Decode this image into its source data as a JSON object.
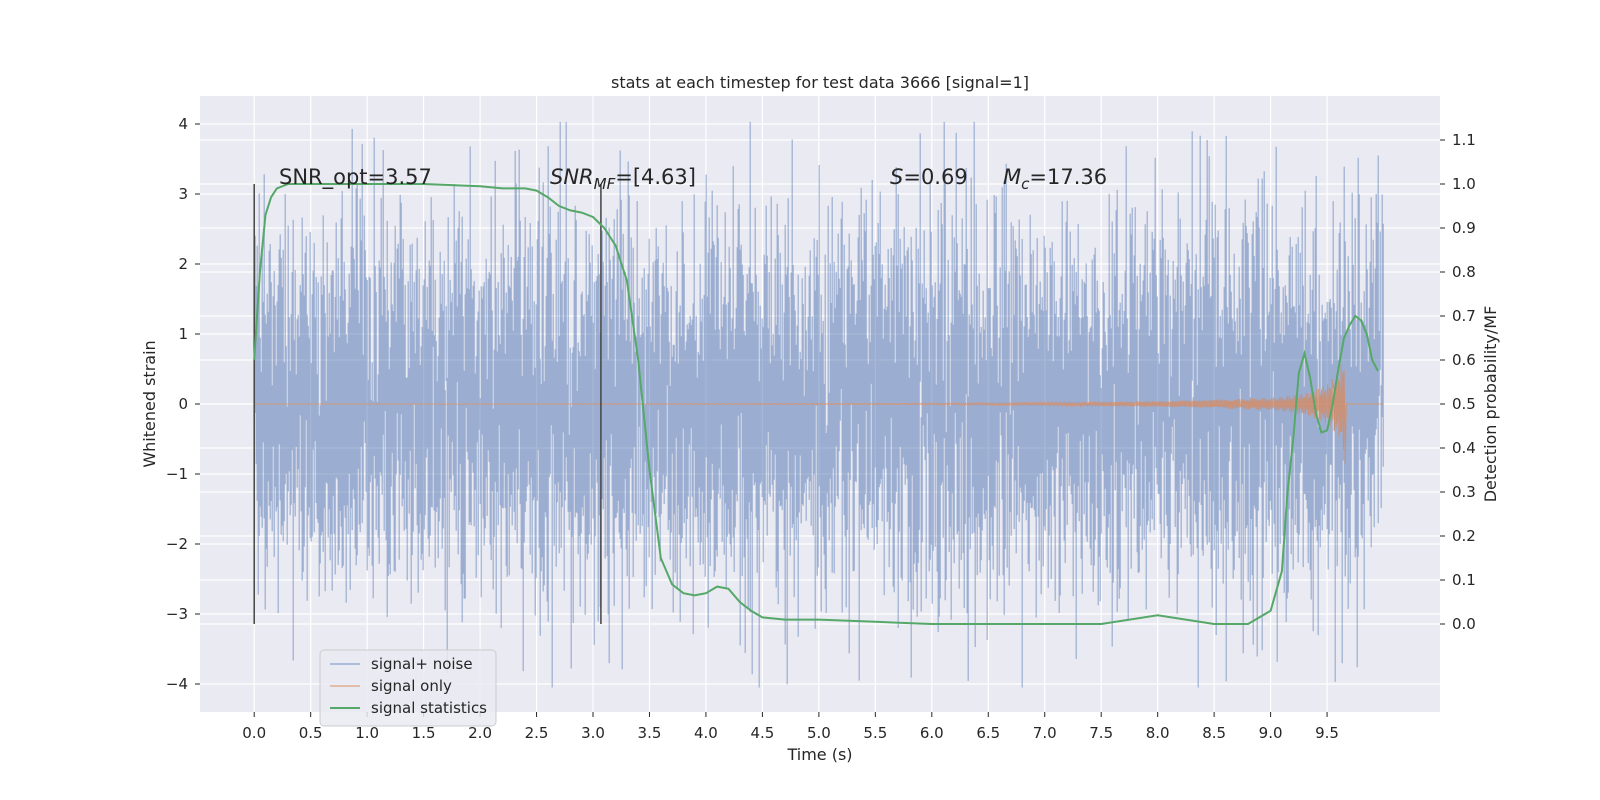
{
  "chart_data": {
    "type": "line",
    "title": "stats at each timestep for test data 3666 [signal=1]",
    "xlabel": "Time (s)",
    "ylabel_left": "Whitened strain",
    "ylabel_right": "Detection probability/MF",
    "xlim": [
      -0.48,
      10.5
    ],
    "xticks": [
      "0.0",
      "0.5",
      "1.0",
      "1.5",
      "2.0",
      "2.5",
      "3.0",
      "3.5",
      "4.0",
      "4.5",
      "5.0",
      "5.5",
      "6.0",
      "6.5",
      "7.0",
      "7.5",
      "8.0",
      "8.5",
      "9.0",
      "9.5"
    ],
    "ylim_left": [
      -4.4,
      4.4
    ],
    "yticks_left": [
      "−4",
      "−3",
      "−2",
      "−1",
      "0",
      "1",
      "2",
      "3",
      "4"
    ],
    "ylim_right": [
      -0.2,
      1.2
    ],
    "yticks_right": [
      "0.0",
      "0.1",
      "0.2",
      "0.3",
      "0.4",
      "0.5",
      "0.6",
      "0.7",
      "0.8",
      "0.9",
      "1.0",
      "1.1"
    ],
    "grid": true,
    "background": "#eaeaf2",
    "legend_position": "lower-left",
    "vertical_markers": [
      0.0,
      3.07
    ],
    "annotations": {
      "snr_opt": "SNR_opt=3.57",
      "snr_mf_main": "SNR",
      "snr_mf_sub": "MF",
      "snr_mf_rest": "=[4.63]",
      "s_sym": "S",
      "s_rest": "=0.69",
      "mc_sym": "M",
      "mc_sub": "c",
      "mc_rest": "=17.36"
    },
    "series": [
      {
        "name": "signal+ noise",
        "color": "#4c72b0",
        "axis": "left",
        "description_values": {
          "t_start": 0.0,
          "t_end": 10.0,
          "std": 1.25,
          "max": 4.03,
          "min": -4.05
        }
      },
      {
        "name": "signal only",
        "color": "#dd8452",
        "axis": "left",
        "envelope": {
          "t": [
            0.0,
            6.0,
            7.0,
            8.0,
            8.5,
            9.0,
            9.3,
            9.5,
            9.6,
            9.66
          ],
          "amp": [
            0.0,
            0.01,
            0.02,
            0.04,
            0.06,
            0.09,
            0.15,
            0.28,
            0.45,
            0.72
          ]
        },
        "end_time": 9.66
      },
      {
        "name": "signal statistics",
        "color": "#55a868",
        "axis": "right",
        "x": [
          0.0,
          0.05,
          0.1,
          0.15,
          0.2,
          0.3,
          0.5,
          1.0,
          1.5,
          2.0,
          2.2,
          2.4,
          2.5,
          2.6,
          2.7,
          2.8,
          2.9,
          3.0,
          3.1,
          3.2,
          3.3,
          3.4,
          3.5,
          3.6,
          3.7,
          3.8,
          3.9,
          4.0,
          4.1,
          4.2,
          4.3,
          4.4,
          4.5,
          4.7,
          5.0,
          5.5,
          6.0,
          6.5,
          7.0,
          7.5,
          8.0,
          8.5,
          8.8,
          9.0,
          9.1,
          9.15,
          9.2,
          9.25,
          9.3,
          9.35,
          9.4,
          9.45,
          9.5,
          9.55,
          9.6,
          9.65,
          9.7,
          9.75,
          9.8,
          9.85,
          9.9,
          9.95
        ],
        "values": [
          0.6,
          0.8,
          0.93,
          0.97,
          0.99,
          1.0,
          1.0,
          1.0,
          1.0,
          0.995,
          0.99,
          0.99,
          0.985,
          0.97,
          0.95,
          0.94,
          0.935,
          0.925,
          0.9,
          0.86,
          0.78,
          0.6,
          0.35,
          0.15,
          0.09,
          0.07,
          0.065,
          0.07,
          0.085,
          0.08,
          0.05,
          0.03,
          0.015,
          0.01,
          0.01,
          0.005,
          0.0,
          0.0,
          0.0,
          0.0,
          0.02,
          0.0,
          0.0,
          0.03,
          0.12,
          0.3,
          0.42,
          0.57,
          0.615,
          0.56,
          0.48,
          0.435,
          0.44,
          0.5,
          0.58,
          0.65,
          0.68,
          0.7,
          0.69,
          0.66,
          0.6,
          0.575
        ]
      }
    ]
  }
}
